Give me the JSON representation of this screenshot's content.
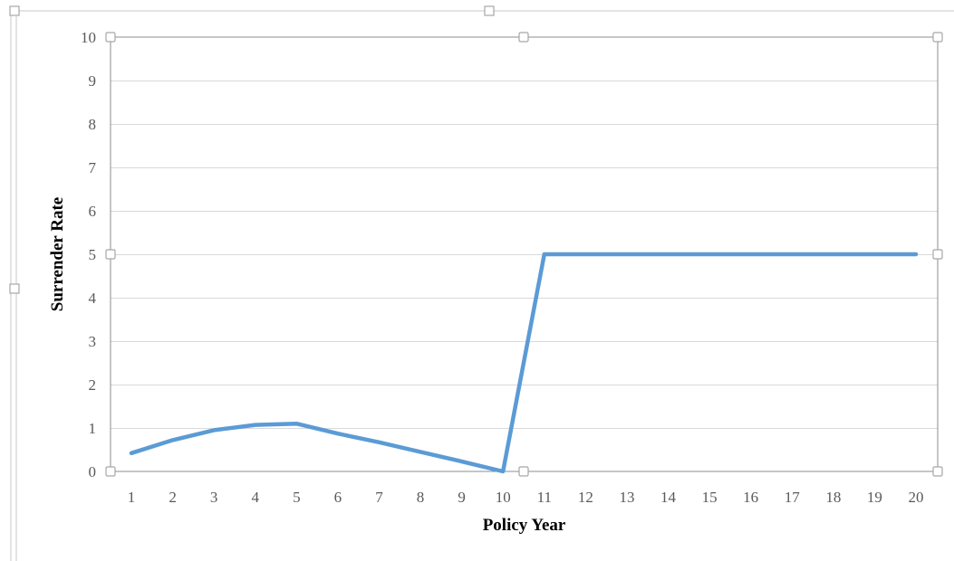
{
  "chart_data": {
    "type": "line",
    "title": "",
    "xlabel": "Policy Year",
    "ylabel": "Surrender Rate",
    "categories": [
      "1",
      "2",
      "3",
      "4",
      "5",
      "6",
      "7",
      "8",
      "9",
      "10",
      "11",
      "12",
      "13",
      "14",
      "15",
      "16",
      "17",
      "18",
      "19",
      "20"
    ],
    "series": [
      {
        "values": [
          0.42,
          0.72,
          0.95,
          1.07,
          1.1,
          0.87,
          0.67,
          0.45,
          0.23,
          0.0,
          5,
          5,
          5,
          5,
          5,
          5,
          5,
          5,
          5,
          5
        ],
        "color": "#5b9bd5"
      }
    ],
    "ylim": [
      0,
      10
    ],
    "yticks": [
      "0",
      "1",
      "2",
      "3",
      "4",
      "5",
      "6",
      "7",
      "8",
      "9",
      "10"
    ],
    "grid": true,
    "legend": "none"
  }
}
